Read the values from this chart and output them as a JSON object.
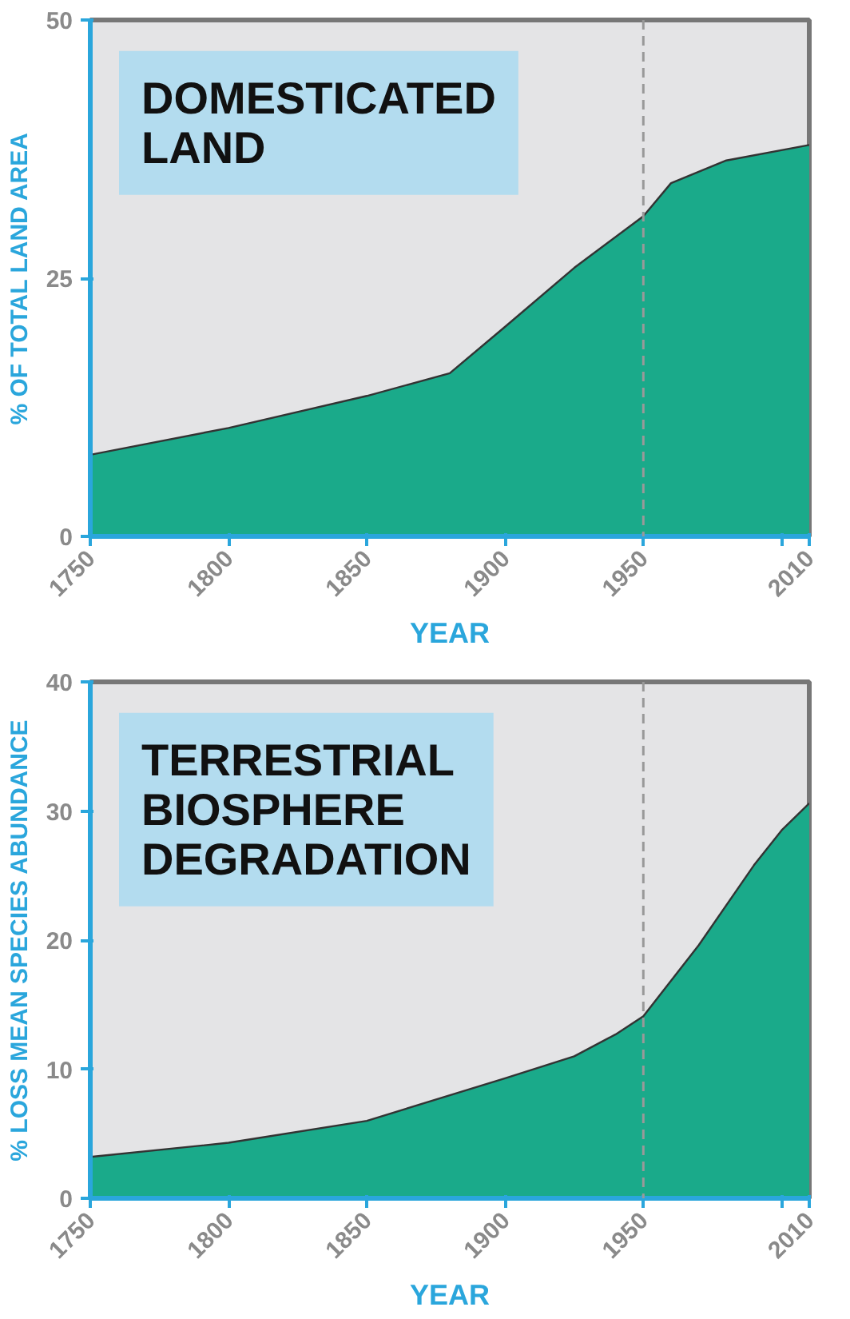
{
  "chart_data": [
    {
      "type": "area",
      "title": "DOMESTICATED LAND",
      "xlabel": "YEAR",
      "ylabel": "% OF TOTAL LAND AREA",
      "x": [
        1750,
        1800,
        1850,
        1880,
        1900,
        1925,
        1950,
        1960,
        1980,
        2010
      ],
      "series": [
        {
          "color": "#1aaa8a",
          "values": [
            7.9,
            10.5,
            13.6,
            15.8,
            20.3,
            26,
            31,
            34.2,
            36.4,
            37.9
          ]
        }
      ],
      "xlim": [
        1750,
        2010
      ],
      "ylim": [
        0,
        50
      ],
      "xticks": [
        1750,
        1800,
        1850,
        1900,
        1950,
        {
          "value": 2000,
          "label": null
        },
        2010
      ],
      "yticks": [
        0,
        25,
        50
      ],
      "ref_lines": [
        {
          "axis": "x",
          "value": 1950,
          "line_style": "dashed",
          "color": "#999999"
        }
      ],
      "grid": false
    },
    {
      "type": "area",
      "title": "TERRESTRIAL BIOSPHERE DEGRADATION",
      "xlabel": "YEAR",
      "ylabel": "% LOSS MEAN SPECIES ABUNDANCE",
      "x": [
        1750,
        1800,
        1850,
        1900,
        1925,
        1940,
        1950,
        1970,
        1990,
        2000,
        2010
      ],
      "series": [
        {
          "color": "#1aaa8a",
          "values": [
            3.2,
            4.3,
            6.0,
            9.3,
            11,
            12.7,
            14.1,
            19.6,
            25.8,
            28.5,
            30.6
          ]
        }
      ],
      "xlim": [
        1750,
        2010
      ],
      "ylim": [
        0,
        40
      ],
      "xticks": [
        1750,
        1800,
        1850,
        1900,
        1950,
        {
          "value": 2000,
          "label": null
        },
        2010
      ],
      "yticks": [
        0,
        10,
        20,
        30,
        40
      ],
      "ref_lines": [
        {
          "axis": "x",
          "value": 1950,
          "line_style": "dashed",
          "color": "#999999"
        }
      ],
      "grid": false
    }
  ]
}
